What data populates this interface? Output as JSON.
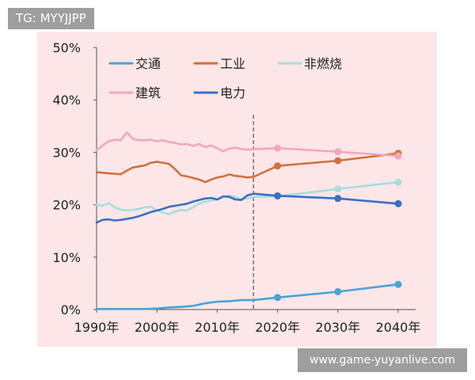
{
  "watermark_top": "TG: MYYJJPP",
  "watermark_bottom": "www.game-yuyanlive.com",
  "chart_data": {
    "type": "line",
    "xlabel": "",
    "ylabel": "",
    "x_range": [
      1990,
      2040
    ],
    "ylim": [
      0,
      50
    ],
    "y_ticks": [
      "0%",
      "10%",
      "20%",
      "30%",
      "40%",
      "50%"
    ],
    "x_ticks": [
      "1990年",
      "2000年",
      "2010年",
      "2020年",
      "2030年",
      "2040年"
    ],
    "grid": false,
    "legend_position": "top",
    "divider_year": 2016,
    "series": [
      {
        "name": "交通",
        "color": "#4aa3d6",
        "history": [
          [
            1990,
            0.1
          ],
          [
            1994,
            0.1
          ],
          [
            1998,
            0.1
          ],
          [
            2000,
            0.2
          ],
          [
            2002,
            0.4
          ],
          [
            2004,
            0.5
          ],
          [
            2006,
            0.7
          ],
          [
            2008,
            1.2
          ],
          [
            2010,
            1.5
          ],
          [
            2012,
            1.6
          ],
          [
            2014,
            1.8
          ],
          [
            2016,
            1.8
          ]
        ],
        "projection": [
          [
            2016,
            1.8
          ],
          [
            2020,
            2.3
          ],
          [
            2030,
            3.4
          ],
          [
            2040,
            4.8
          ]
        ],
        "markers": [
          [
            2020,
            2.3
          ],
          [
            2030,
            3.4
          ],
          [
            2040,
            4.8
          ]
        ]
      },
      {
        "name": "工业",
        "color": "#d2703a",
        "history": [
          [
            1990,
            26.2
          ],
          [
            1991,
            26.1
          ],
          [
            1992,
            26.0
          ],
          [
            1993,
            25.9
          ],
          [
            1994,
            25.8
          ],
          [
            1995,
            26.5
          ],
          [
            1996,
            27.1
          ],
          [
            1997,
            27.3
          ],
          [
            1998,
            27.5
          ],
          [
            1999,
            28.0
          ],
          [
            2000,
            28.2
          ],
          [
            2001,
            28.0
          ],
          [
            2002,
            27.8
          ],
          [
            2003,
            26.8
          ],
          [
            2004,
            25.6
          ],
          [
            2005,
            25.4
          ],
          [
            2006,
            25.1
          ],
          [
            2007,
            24.8
          ],
          [
            2008,
            24.3
          ],
          [
            2009,
            24.8
          ],
          [
            2010,
            25.2
          ],
          [
            2011,
            25.4
          ],
          [
            2012,
            25.8
          ],
          [
            2013,
            25.5
          ],
          [
            2014,
            25.4
          ],
          [
            2015,
            25.2
          ],
          [
            2016,
            25.3
          ]
        ],
        "projection": [
          [
            2016,
            25.3
          ],
          [
            2020,
            27.4
          ],
          [
            2030,
            28.4
          ],
          [
            2040,
            29.8
          ]
        ],
        "markers": [
          [
            2020,
            27.4
          ],
          [
            2030,
            28.4
          ],
          [
            2040,
            29.8
          ]
        ]
      },
      {
        "name": "非燃烧",
        "color": "#a6dedd",
        "history": [
          [
            1990,
            20.0
          ],
          [
            1991,
            19.8
          ],
          [
            1992,
            20.3
          ],
          [
            1993,
            19.5
          ],
          [
            1994,
            19.1
          ],
          [
            1995,
            18.9
          ],
          [
            1996,
            19.0
          ],
          [
            1997,
            19.2
          ],
          [
            1998,
            19.5
          ],
          [
            1999,
            19.6
          ],
          [
            2000,
            18.9
          ],
          [
            2001,
            18.5
          ],
          [
            2002,
            18.2
          ],
          [
            2003,
            18.7
          ],
          [
            2004,
            19.0
          ],
          [
            2005,
            18.9
          ],
          [
            2006,
            19.5
          ],
          [
            2007,
            20.2
          ],
          [
            2008,
            20.6
          ],
          [
            2009,
            20.8
          ],
          [
            2010,
            21.0
          ],
          [
            2011,
            21.4
          ],
          [
            2012,
            21.8
          ],
          [
            2013,
            21.5
          ],
          [
            2014,
            21.0
          ],
          [
            2015,
            21.2
          ],
          [
            2016,
            21.5
          ]
        ],
        "projection": [
          [
            2016,
            21.5
          ],
          [
            2020,
            21.6
          ],
          [
            2030,
            23.0
          ],
          [
            2040,
            24.3
          ]
        ],
        "markers": [
          [
            2020,
            21.6
          ],
          [
            2030,
            23.0
          ],
          [
            2040,
            24.3
          ]
        ]
      },
      {
        "name": "建筑",
        "color": "#f0a7bc",
        "history": [
          [
            1990,
            30.4
          ],
          [
            1991,
            31.3
          ],
          [
            1992,
            32.1
          ],
          [
            1993,
            32.4
          ],
          [
            1994,
            32.3
          ],
          [
            1995,
            33.8
          ],
          [
            1996,
            32.6
          ],
          [
            1997,
            32.3
          ],
          [
            1998,
            32.3
          ],
          [
            1999,
            32.4
          ],
          [
            2000,
            32.1
          ],
          [
            2001,
            32.3
          ],
          [
            2002,
            32.0
          ],
          [
            2003,
            31.8
          ],
          [
            2004,
            31.5
          ],
          [
            2005,
            31.6
          ],
          [
            2006,
            31.2
          ],
          [
            2007,
            31.6
          ],
          [
            2008,
            31.0
          ],
          [
            2009,
            31.3
          ],
          [
            2010,
            30.8
          ],
          [
            2011,
            30.2
          ],
          [
            2012,
            30.7
          ],
          [
            2013,
            30.9
          ],
          [
            2014,
            30.6
          ],
          [
            2015,
            30.5
          ],
          [
            2016,
            30.6
          ]
        ],
        "projection": [
          [
            2016,
            30.6
          ],
          [
            2020,
            30.8
          ],
          [
            2030,
            30.1
          ],
          [
            2040,
            29.3
          ]
        ],
        "markers": [
          [
            2020,
            30.8
          ],
          [
            2030,
            30.1
          ],
          [
            2040,
            29.3
          ]
        ]
      },
      {
        "name": "电力",
        "color": "#3a6fc2",
        "history": [
          [
            1990,
            16.6
          ],
          [
            1991,
            17.1
          ],
          [
            1992,
            17.2
          ],
          [
            1993,
            17.0
          ],
          [
            1994,
            17.1
          ],
          [
            1995,
            17.3
          ],
          [
            1996,
            17.5
          ],
          [
            1997,
            17.8
          ],
          [
            1998,
            18.2
          ],
          [
            1999,
            18.6
          ],
          [
            2000,
            18.9
          ],
          [
            2001,
            19.2
          ],
          [
            2002,
            19.6
          ],
          [
            2003,
            19.8
          ],
          [
            2004,
            20.0
          ],
          [
            2005,
            20.2
          ],
          [
            2006,
            20.6
          ],
          [
            2007,
            20.9
          ],
          [
            2008,
            21.2
          ],
          [
            2009,
            21.3
          ],
          [
            2010,
            21.0
          ],
          [
            2011,
            21.6
          ],
          [
            2012,
            21.5
          ],
          [
            2013,
            21.0
          ],
          [
            2014,
            20.9
          ],
          [
            2015,
            21.8
          ],
          [
            2016,
            22.1
          ]
        ],
        "projection": [
          [
            2016,
            22.1
          ],
          [
            2020,
            21.7
          ],
          [
            2030,
            21.2
          ],
          [
            2040,
            20.2
          ]
        ],
        "markers": [
          [
            2020,
            21.7
          ],
          [
            2030,
            21.2
          ],
          [
            2040,
            20.2
          ]
        ]
      }
    ]
  }
}
